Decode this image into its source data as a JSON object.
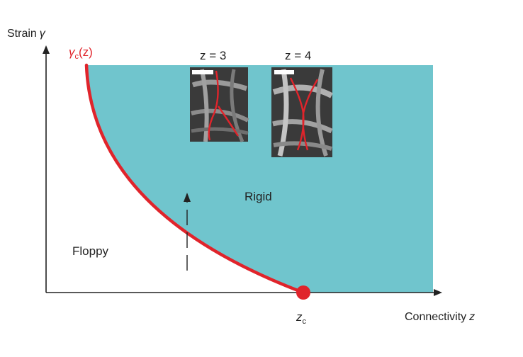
{
  "colors": {
    "rigid_fill": "#70c5cd",
    "boundary": "#e0242b",
    "axis": "#222222",
    "text": "#222222"
  },
  "axes": {
    "y_label": "Strain",
    "y_symbol": "γ",
    "x_label": "Connectivity",
    "x_symbol": "z"
  },
  "curve": {
    "label_symbol": "γ",
    "label_subscript": "c",
    "label_arg": "(z)"
  },
  "critical_point": {
    "symbol": "z",
    "subscript": "c"
  },
  "regions": {
    "floppy": "Floppy",
    "rigid": "Rigid"
  },
  "insets": [
    {
      "label": "z = 3"
    },
    {
      "label": "z = 4"
    }
  ]
}
